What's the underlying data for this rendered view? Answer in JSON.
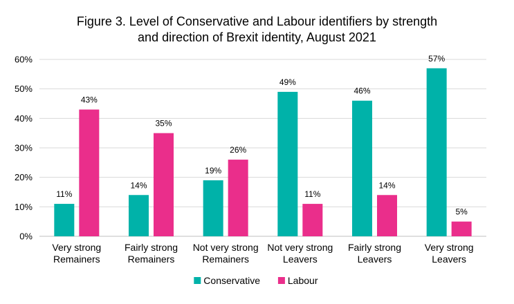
{
  "chart_data": {
    "type": "bar",
    "title_lines": [
      "Figure 3. Level of Conservative and Labour identifiers by strength",
      "and direction of Brexit identity, August 2021"
    ],
    "categories": [
      [
        "Very strong",
        "Remainers"
      ],
      [
        "Fairly strong",
        "Remainers"
      ],
      [
        "Not very strong",
        "Remainers"
      ],
      [
        "Not very strong",
        "Leavers"
      ],
      [
        "Fairly strong",
        "Leavers"
      ],
      [
        "Very strong",
        "Leavers"
      ]
    ],
    "series": [
      {
        "name": "Conservative",
        "color": "#00B2A9",
        "values": [
          11,
          14,
          19,
          49,
          46,
          57
        ]
      },
      {
        "name": "Labour",
        "color": "#EA2E8B",
        "values": [
          43,
          35,
          26,
          11,
          14,
          5
        ]
      }
    ],
    "value_suffix": "%",
    "ylim": [
      0,
      60
    ],
    "y_ticks": [
      0,
      10,
      20,
      30,
      40,
      50,
      60
    ],
    "grid": true,
    "legend_position": "bottom"
  }
}
